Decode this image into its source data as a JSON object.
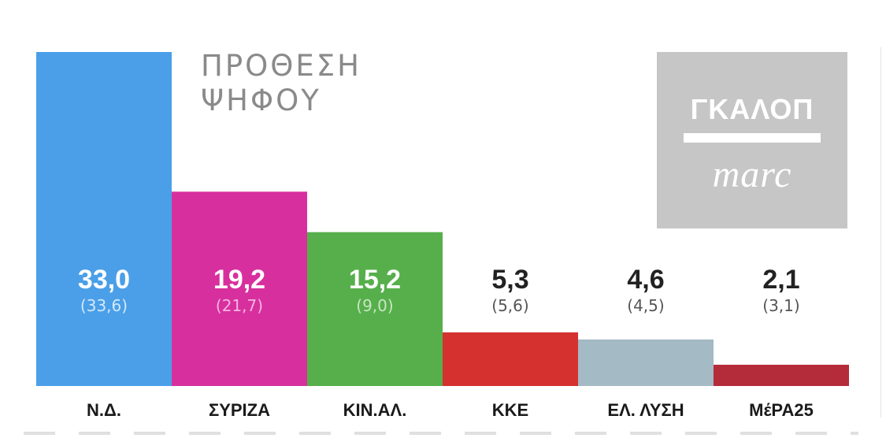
{
  "chart_data": {
    "type": "bar",
    "title_lines": [
      "ΠΡΟΘΕΣΗ",
      "ΨΗΦΟΥ"
    ],
    "categories": [
      "Ν.Δ.",
      "ΣΥΡΙΖΑ",
      "ΚΙΝ.ΑΛ.",
      "ΚΚΕ",
      "ΕΛ. ΛΥΣΗ",
      "ΜέΡΑ25"
    ],
    "values": [
      33.0,
      19.2,
      15.2,
      5.3,
      4.6,
      2.1
    ],
    "value_labels": [
      "33,0",
      "19,2",
      "15,2",
      "5,3",
      "4,6",
      "2,1"
    ],
    "previous_values": [
      33.6,
      21.7,
      9.0,
      5.6,
      4.5,
      3.1
    ],
    "previous_labels": [
      "(33,6)",
      "(21,7)",
      "(9,0)",
      "(5,6)",
      "(4,5)",
      "(3,1)"
    ],
    "colors": [
      "#4a9fe8",
      "#d82f9e",
      "#56af4b",
      "#d4312f",
      "#a4bac4",
      "#b42b3a"
    ],
    "value_label_colors": [
      "#ffffff",
      "#ffffff",
      "#ffffff",
      "#222222",
      "#222222",
      "#222222"
    ],
    "previous_label_colors": [
      "#d4e8fb",
      "#f2b5df",
      "#c8e6c2",
      "#555555",
      "#555555",
      "#555555"
    ],
    "xlabel": "",
    "ylabel": "",
    "ylim": [
      0,
      33.0
    ],
    "grid": false,
    "legend": "none"
  },
  "logo": {
    "top_text": "ΓΚΑΛΟΠ",
    "bottom_text": "marc",
    "background": "#c6c6c6"
  }
}
